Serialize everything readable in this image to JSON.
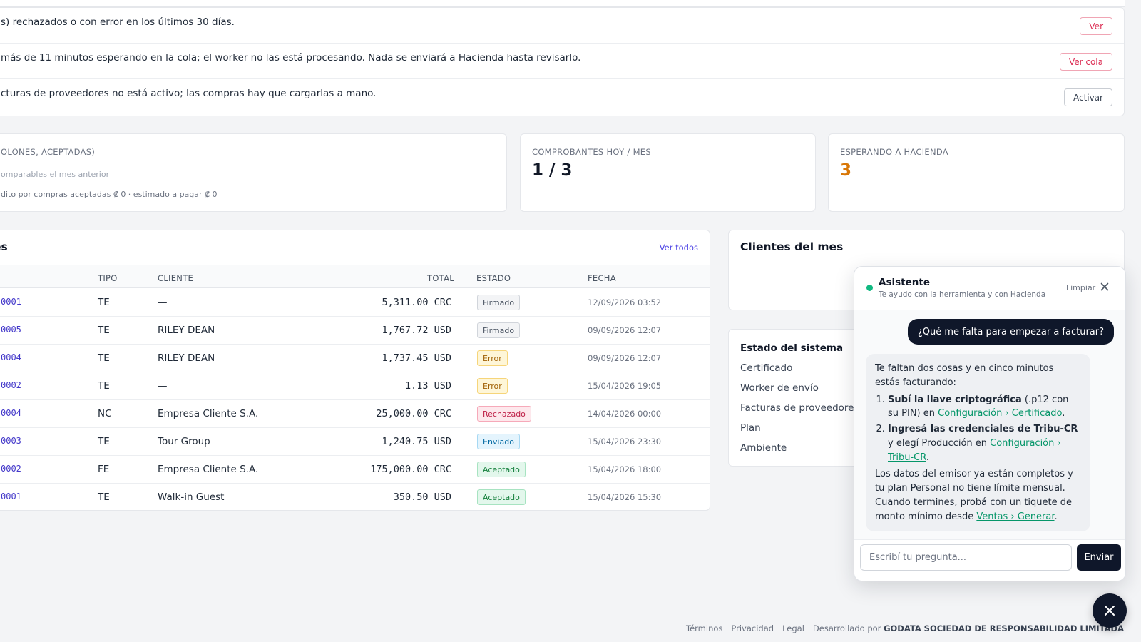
{
  "alerts": [
    {
      "text": "s) rechazados o con error en los últimos 30 días.",
      "action": "Ver"
    },
    {
      "text": " más de 11 minutos esperando en la cola; el worker no las está procesando. Nada se enviará a Hacienda hasta revisarlo.",
      "action": "Ver cola"
    },
    {
      "text": "cturas de proveedores no está activo; las compras hay que cargarlas a mano.",
      "action": "Activar"
    }
  ],
  "kpis": {
    "sales": {
      "label": "OLONES, ACEPTADAS)",
      "note": "omparables el mes anterior",
      "detail": "dito por compras aceptadas ₡ 0 · estimado a pagar ₡ 0"
    },
    "today": {
      "label": "COMPROBANTES HOY / MES",
      "value": "1 / 3"
    },
    "waiting": {
      "label": "ESPERANDO A HACIENDA",
      "value": "3",
      "value_color": "#d97706"
    }
  },
  "recent": {
    "title": "es",
    "view_all": "Ver todos",
    "columns": {
      "tipo": "TIPO",
      "cliente": "CLIENTE",
      "total": "TOTAL",
      "estado": "ESTADO",
      "fecha": "FECHA"
    },
    "rows": [
      {
        "num": "0001",
        "tipo": "TE",
        "cliente": "—",
        "total": "5,311.00 CRC",
        "estado": "Firmado",
        "fecha": "12/09/2026 03:52"
      },
      {
        "num": "0005",
        "tipo": "TE",
        "cliente": "RILEY DEAN",
        "total": "1,767.72 USD",
        "estado": "Firmado",
        "fecha": "09/09/2026 12:07"
      },
      {
        "num": "0004",
        "tipo": "TE",
        "cliente": "RILEY DEAN",
        "total": "1,737.45 USD",
        "estado": "Error",
        "fecha": "09/09/2026 12:07"
      },
      {
        "num": "0002",
        "tipo": "TE",
        "cliente": "—",
        "total": "1.13 USD",
        "estado": "Error",
        "fecha": "15/04/2026 19:05"
      },
      {
        "num": "0004",
        "tipo": "NC",
        "cliente": "Empresa Cliente S.A.",
        "total": "25,000.00 CRC",
        "estado": "Rechazado",
        "fecha": "14/04/2026 00:00"
      },
      {
        "num": "0003",
        "tipo": "TE",
        "cliente": "Tour Group",
        "total": "1,240.75 USD",
        "estado": "Enviado",
        "fecha": "15/04/2026 23:30"
      },
      {
        "num": "0002",
        "tipo": "FE",
        "cliente": "Empresa Cliente S.A.",
        "total": "175,000.00 CRC",
        "estado": "Aceptado",
        "fecha": "15/04/2026 18:00"
      },
      {
        "num": "0001",
        "tipo": "TE",
        "cliente": "Walk-in Guest",
        "total": "350.50 USD",
        "estado": "Aceptado",
        "fecha": "15/04/2026 15:30"
      }
    ]
  },
  "clients": {
    "title": "Clientes del mes"
  },
  "system": {
    "title": "Estado del sistema",
    "items": [
      "Certificado",
      "Worker de envío",
      "Facturas de proveedores",
      "Plan",
      "Ambiente"
    ]
  },
  "assistant": {
    "title": "Asistente",
    "subtitle": "Te ayudo con la herramienta y con Hacienda",
    "clear": "Limpiar",
    "user_message": "¿Qué me falta para empezar a facturar?",
    "reply_intro": "Te faltan dos cosas y en cinco minutos estás facturando:",
    "step1_bold": "Subí la llave criptográfica",
    "step1_text": " (.p12 con su PIN) en ",
    "step1_link": "Configuración › Certificado",
    "step2_bold": "Ingresá las credenciales de Tribu-CR",
    "step2_text": " y elegí Producción en ",
    "step2_link": "Configuración › Tribu-CR",
    "reply_outro": "Los datos del emisor ya están completos y tu plan Personal no tiene límite mensual. Cuando termines, probá con un tiquete de monto mínimo desde ",
    "outro_link": "Ventas › Generar",
    "input_placeholder": "Escribí tu pregunta...",
    "send": "Enviar"
  },
  "footer": {
    "terms": "Términos",
    "privacy": "Privacidad",
    "legal": "Legal",
    "dev_prefix": "Desarrollado por",
    "company": "GODATA SOCIEDAD DE RESPONSABILIDAD LIMITADA"
  },
  "icons": {
    "close": "close-icon",
    "status_dot": "online-dot",
    "fab": "close-icon"
  }
}
